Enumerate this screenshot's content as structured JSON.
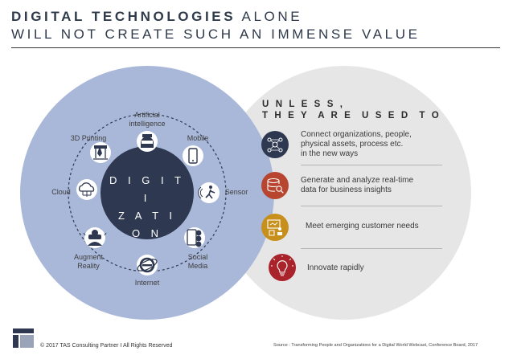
{
  "title": {
    "line1_bold": "DIGITAL TECHNOLOGIES",
    "line1_rest": " ALONE",
    "line2": "WILL NOT CREATE SUCH AN IMMENSE VALUE"
  },
  "digitization": {
    "center_line1": "D I G I T I",
    "center_line2": "Z A T I O N",
    "technologies": [
      {
        "label": "Artificial\nintelligence",
        "icon": "robot-head-icon"
      },
      {
        "label": "Mobile",
        "icon": "mobile-phone-icon"
      },
      {
        "label": "Sensor",
        "icon": "motion-sensor-icon"
      },
      {
        "label": "Social\nMedia",
        "icon": "social-media-icon"
      },
      {
        "label": "Internet",
        "icon": "internet-explorer-icon"
      },
      {
        "label": "Augment\nReality",
        "icon": "vr-headset-icon"
      },
      {
        "label": "Cloud",
        "icon": "cloud-network-icon"
      },
      {
        "label": "3D Printing",
        "icon": "3d-printer-icon"
      }
    ]
  },
  "unless": {
    "heading_line1": "U N L E S S ,",
    "heading_line2": "T H E Y  A R E  U S E D  T O",
    "items": [
      {
        "text": "Connect organizations, people,\nphysical assets, process etc.\nin the new ways",
        "icon": "network-nodes-icon",
        "color": "#2e3850"
      },
      {
        "text": "Generate and analyze real-time\ndata for business insights",
        "icon": "database-search-icon",
        "color": "#b8452f"
      },
      {
        "text": "Meet emerging customer needs",
        "icon": "customer-presentation-icon",
        "color": "#c7901c"
      },
      {
        "text": "Innovate rapidly",
        "icon": "lightbulb-icon",
        "color": "#a9232b"
      }
    ]
  },
  "colors": {
    "left_circle": "#a9b8d8",
    "right_circle": "#e6e6e6",
    "center_circle": "#2e3850"
  },
  "footer": {
    "copyright": "© 2017 TAS Consulting Partner  I  All Rights Reserved",
    "source": "Source :  Transforming People and Organizations  for a Digital World Webcast, Conference Board, 2017"
  }
}
